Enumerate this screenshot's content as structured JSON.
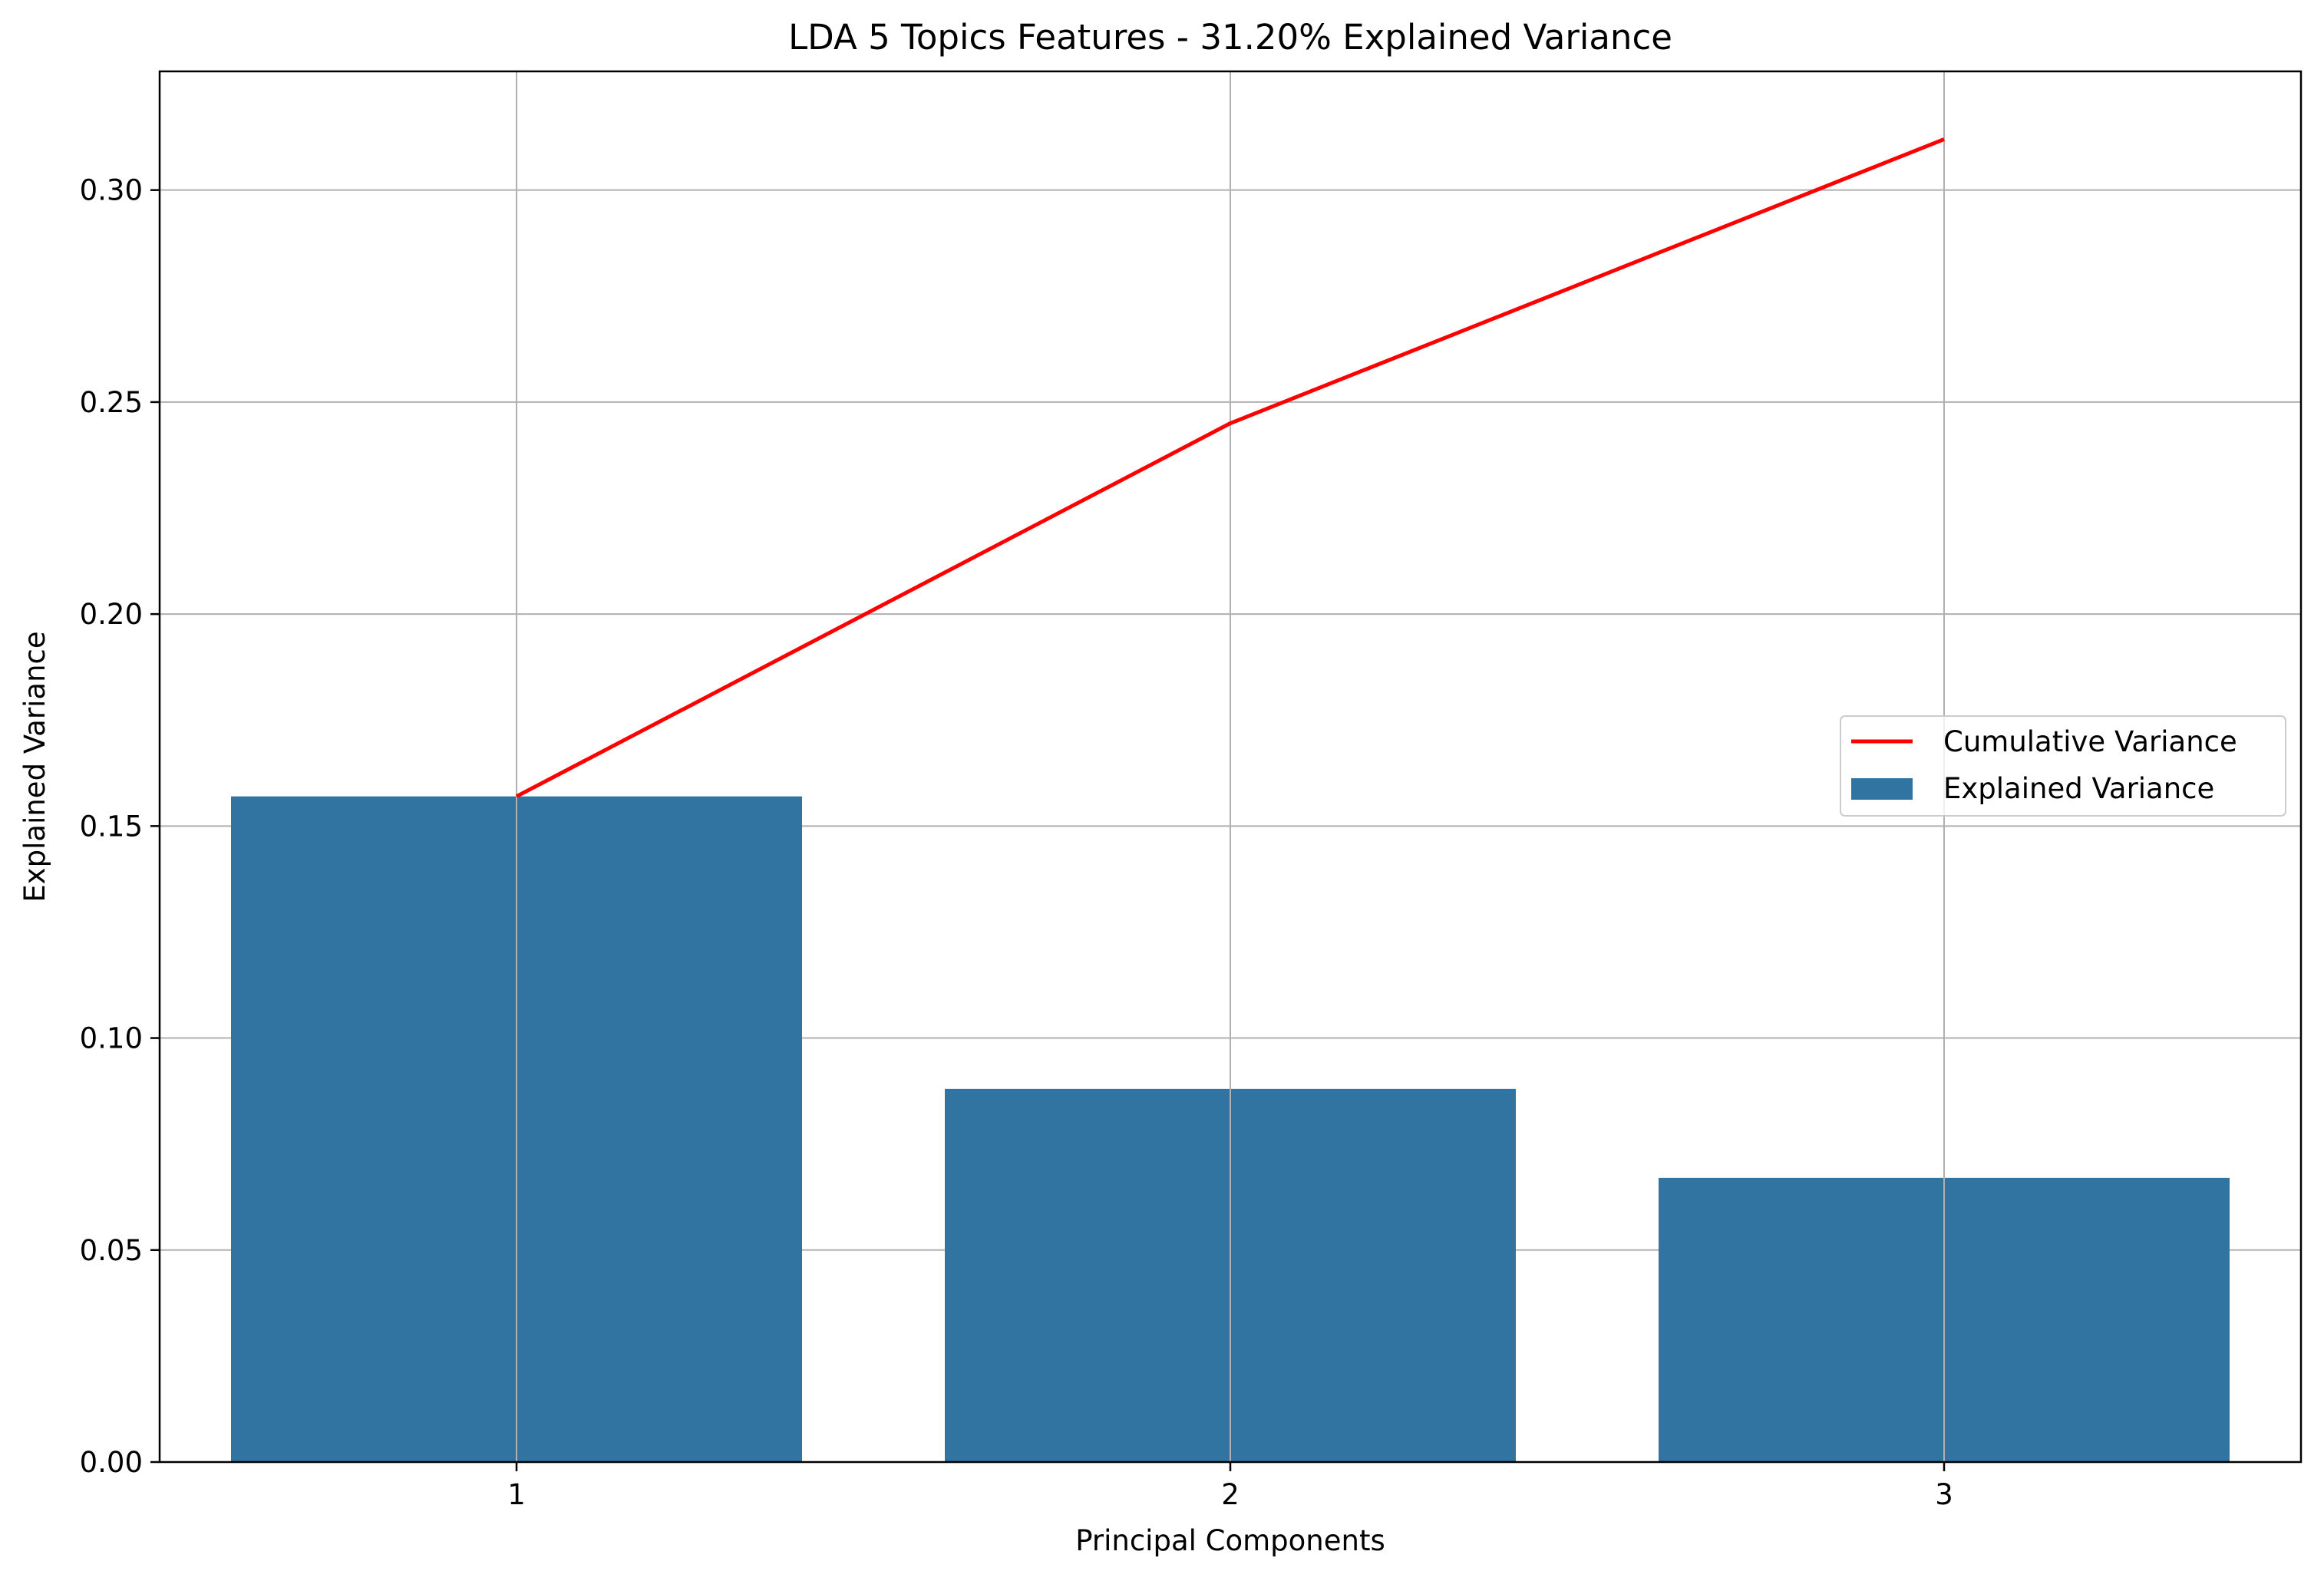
{
  "chart_data": {
    "type": "bar",
    "title": "LDA 5 Topics Features - 31.20% Explained Variance",
    "xlabel": "Principal Components",
    "ylabel": "Explained Variance",
    "categories": [
      "1",
      "2",
      "3"
    ],
    "series": [
      {
        "name": "Explained Variance",
        "kind": "bar",
        "color": "#3274a1",
        "values": [
          0.157,
          0.088,
          0.067
        ]
      },
      {
        "name": "Cumulative Variance",
        "kind": "line",
        "color": "#ff0000",
        "values": [
          0.157,
          0.245,
          0.312
        ]
      }
    ],
    "ylim": [
      0,
      0.328
    ],
    "yticks": [
      "0.00",
      "0.05",
      "0.10",
      "0.15",
      "0.20",
      "0.25",
      "0.30"
    ],
    "grid": true,
    "legend_position": "center-right",
    "legend": [
      "Cumulative Variance",
      "Explained Variance"
    ]
  }
}
